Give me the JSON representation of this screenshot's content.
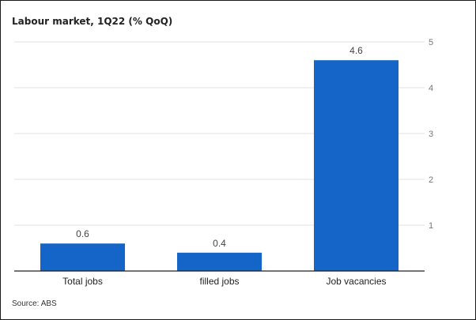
{
  "chart_data": {
    "type": "bar",
    "title": "Labour market, 1Q22 (% QoQ)",
    "categories": [
      "Total jobs",
      "filled jobs",
      "Job vacancies"
    ],
    "values": [
      0.6,
      0.4,
      4.6
    ],
    "data_labels": [
      "0.6",
      "0.4",
      "4.6"
    ],
    "yticks": [
      "1",
      "2",
      "3",
      "4",
      "5"
    ],
    "ylim": [
      0,
      5
    ],
    "xlabel": "",
    "ylabel": "",
    "y_axis_side": "right",
    "grid": true,
    "bar_color": "#1565c8",
    "source": "Source: ABS"
  }
}
